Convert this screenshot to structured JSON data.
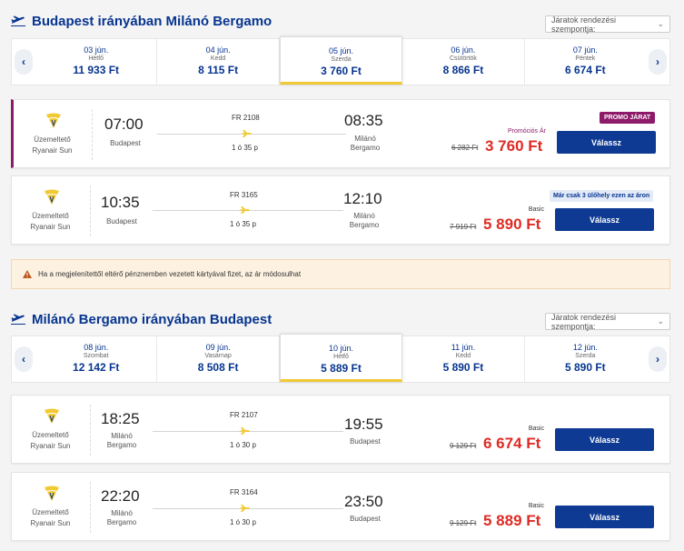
{
  "sort_placeholder": "Járatok rendezési szempontja:",
  "outbound": {
    "title": "Budapest irányában Milánó Bergamo",
    "days": [
      {
        "date": "03 jún.",
        "name": "Hétfő",
        "price": "11 933 Ft"
      },
      {
        "date": "04 jún.",
        "name": "Kedd",
        "price": "8 115 Ft"
      },
      {
        "date": "05 jún.",
        "name": "Szerda",
        "price": "3 760 Ft"
      },
      {
        "date": "06 jún.",
        "name": "Csütörtök",
        "price": "8 866 Ft"
      },
      {
        "date": "07 jún.",
        "name": "Péntek",
        "price": "6 674 Ft"
      }
    ],
    "flights": [
      {
        "operator": "Üzemeltető",
        "operator_name": "Ryanair Sun",
        "depart": "07:00",
        "from": "Budapest",
        "flight": "FR 2108",
        "duration": "1 ó 35 p",
        "arrive": "08:35",
        "to_1": "Milánó",
        "to_2": "Bergamo",
        "fare": "Promóciós Ár",
        "old_price": "6 282 Ft",
        "price": "3 760 Ft",
        "button": "Válassz",
        "badge": "PROMO JÁRAT"
      },
      {
        "operator": "Üzemeltető",
        "operator_name": "Ryanair Sun",
        "depart": "10:35",
        "from": "Budapest",
        "flight": "FR 3165",
        "duration": "1 ó 35 p",
        "arrive": "12:10",
        "to_1": "Milánó",
        "to_2": "Bergamo",
        "fare": "Basic",
        "old_price": "7 919 Ft",
        "price": "5 890 Ft",
        "button": "Válassz",
        "badge": "Már csak 3 ülőhely ezen az áron"
      }
    ]
  },
  "warning": "Ha a megjelenítettől eltérő pénznemben vezetett kártyával fizet, az ár módosulhat",
  "inbound": {
    "title": "Milánó Bergamo irányában Budapest",
    "days": [
      {
        "date": "08 jún.",
        "name": "Szombat",
        "price": "12 142 Ft"
      },
      {
        "date": "09 jún.",
        "name": "Vasárnap",
        "price": "8 508 Ft"
      },
      {
        "date": "10 jún.",
        "name": "Hétfő",
        "price": "5 889 Ft"
      },
      {
        "date": "11 jún.",
        "name": "Kedd",
        "price": "5 890 Ft"
      },
      {
        "date": "12 jún.",
        "name": "Szerda",
        "price": "5 890 Ft"
      }
    ],
    "flights": [
      {
        "operator": "Üzemeltető",
        "operator_name": "Ryanair Sun",
        "depart": "18:25",
        "from_1": "Milánó",
        "from_2": "Bergamo",
        "flight": "FR 2107",
        "duration": "1 ó 30 p",
        "arrive": "19:55",
        "to": "Budapest",
        "fare": "Basic",
        "old_price": "9 129 Ft",
        "price": "6 674 Ft",
        "button": "Válassz"
      },
      {
        "operator": "Üzemeltető",
        "operator_name": "Ryanair Sun",
        "depart": "22:20",
        "from_1": "Milánó",
        "from_2": "Bergamo",
        "flight": "FR 3164",
        "duration": "1 ó 30 p",
        "arrive": "23:50",
        "to": "Budapest",
        "fare": "Basic",
        "old_price": "9 129 Ft",
        "price": "5 889 Ft",
        "button": "Válassz"
      }
    ]
  },
  "colors": {
    "brand": "#073590",
    "price": "#e02b24",
    "promo": "#8e1a6a",
    "button": "#0e3a93",
    "selected_underline": "#f1c933"
  }
}
